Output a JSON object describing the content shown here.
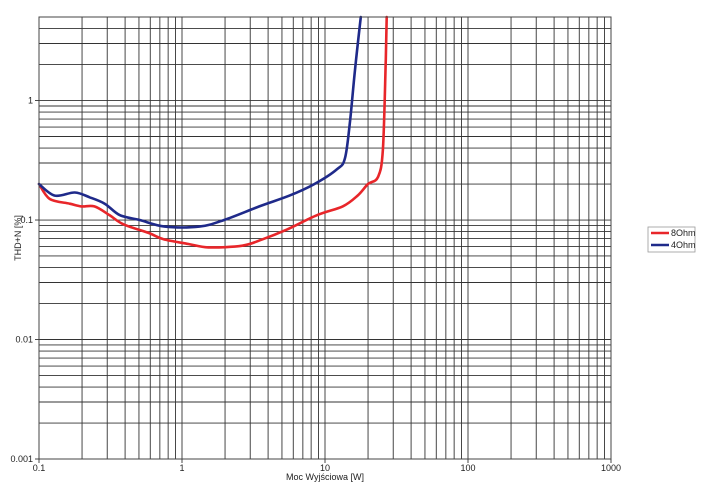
{
  "chart_data": {
    "type": "line",
    "title": "",
    "xlabel": "Moc Wyjściowa [W]",
    "ylabel": "THD+N [%]",
    "xscale": "log",
    "yscale": "log",
    "xlim": [
      0.1,
      1000
    ],
    "ylim": [
      0.001,
      5
    ],
    "grid": true,
    "x_tick_labels": [
      "0.1",
      "1",
      "10",
      "100",
      "1000"
    ],
    "y_tick_labels": [
      "0.001",
      "0.01",
      "0.1",
      "1"
    ],
    "legend_position": "right",
    "series": [
      {
        "name": "8Ohm",
        "color": "#e8262a",
        "x": [
          0.1,
          0.119,
          0.164,
          0.198,
          0.244,
          0.311,
          0.39,
          0.583,
          0.744,
          1.11,
          1.53,
          2.64,
          3.66,
          5.39,
          8.83,
          13.3,
          16.9,
          20.0,
          23.5,
          25.4,
          26.6,
          27.0
        ],
        "y": [
          0.2,
          0.15,
          0.137,
          0.13,
          0.13,
          0.11,
          0.092,
          0.078,
          0.069,
          0.063,
          0.059,
          0.061,
          0.069,
          0.083,
          0.11,
          0.13,
          0.16,
          0.2,
          0.23,
          0.39,
          2.2,
          5
        ]
      },
      {
        "name": "4Ohm",
        "color": "#1f2a8a",
        "x": [
          0.1,
          0.129,
          0.178,
          0.226,
          0.288,
          0.367,
          0.506,
          0.758,
          1.32,
          1.97,
          3.47,
          5.65,
          8.44,
          12.1,
          13.8,
          15.0,
          16.2,
          17.8
        ],
        "y": [
          0.2,
          0.16,
          0.17,
          0.155,
          0.137,
          0.11,
          0.1,
          0.088,
          0.088,
          0.1,
          0.13,
          0.16,
          0.2,
          0.265,
          0.33,
          0.69,
          1.8,
          5
        ]
      }
    ]
  },
  "legend": {
    "items": [
      {
        "label": "8Ohm",
        "color": "#e8262a"
      },
      {
        "label": "4Ohm",
        "color": "#1f2a8a"
      }
    ]
  }
}
